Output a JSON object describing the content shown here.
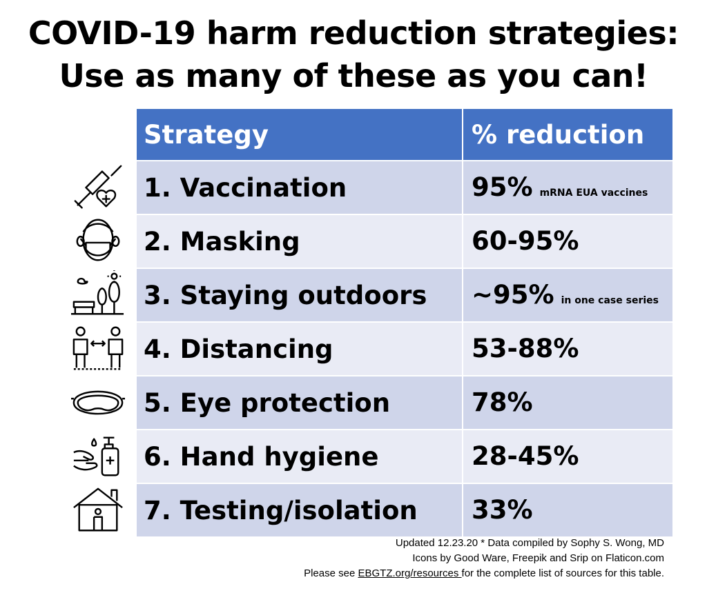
{
  "title": {
    "line1": "COVID-19 harm reduction strategies:",
    "line2": "Use as many of these as you can!"
  },
  "table": {
    "headers": [
      "Strategy",
      "% reduction"
    ],
    "rows": [
      {
        "strategy": "1. Vaccination",
        "reduction": "95%",
        "note": "mRNA EUA vaccines",
        "icon": "vaccine-heart-icon"
      },
      {
        "strategy": "2. Masking",
        "reduction": "60-95%",
        "note": "",
        "icon": "masked-face-icon"
      },
      {
        "strategy": "3. Staying outdoors",
        "reduction": "~95%",
        "note": "in one case series",
        "icon": "park-bench-trees-icon"
      },
      {
        "strategy": "4. Distancing",
        "reduction": "53-88%",
        "note": "",
        "icon": "social-distancing-icon"
      },
      {
        "strategy": "5. Eye protection",
        "reduction": "78%",
        "note": "",
        "icon": "goggles-icon"
      },
      {
        "strategy": "6. Hand hygiene",
        "reduction": "28-45%",
        "note": "",
        "icon": "hand-sanitizer-icon"
      },
      {
        "strategy": "7. Testing/isolation",
        "reduction": "33%",
        "note": "",
        "icon": "house-isolation-icon"
      }
    ]
  },
  "footer": {
    "line1": "Updated 12.23.20 * Data compiled by Sophy S. Wong, MD",
    "line2": "Icons by Good Ware, Freepik and Srip on Flaticon.com",
    "line3_pre": "Please see ",
    "line3_link": "EBGTZ.org/resources ",
    "line3_post": "for the complete list of sources for this table."
  },
  "colors": {
    "header_bg": "#4472c4",
    "row_odd": "#cfd5ea",
    "row_even": "#e9ebf5"
  }
}
